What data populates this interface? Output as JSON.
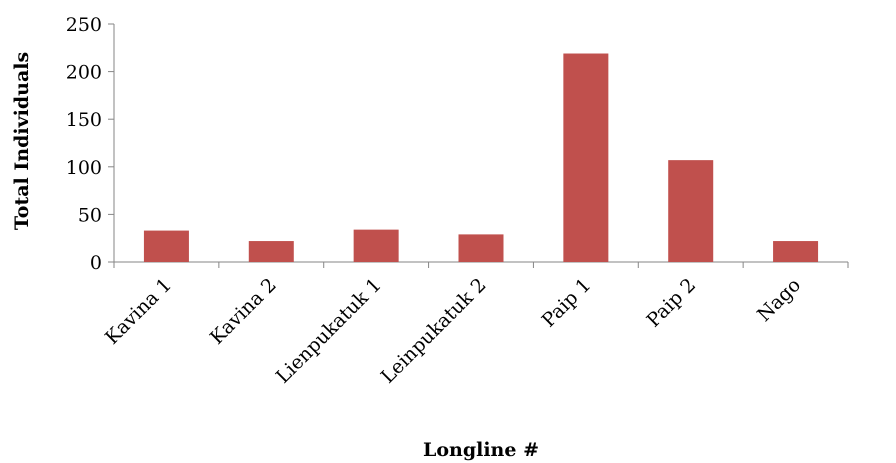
{
  "chart_data": {
    "type": "bar",
    "title": "",
    "xlabel": "Longline #",
    "ylabel": "Total Individuals",
    "categories": [
      "Kavina 1",
      "Kavina 2",
      "Lienpukatuk 1",
      "Leinpukatuk 2",
      "Paip 1",
      "Paip 2",
      "Nago"
    ],
    "values": [
      33,
      22,
      34,
      29,
      219,
      107,
      22
    ],
    "ylim": [
      0,
      250
    ],
    "yticks": [
      "0",
      "50",
      "100",
      "150",
      "200",
      "250"
    ],
    "grid": false,
    "legend": "none",
    "bar_color": "#C0504D"
  }
}
